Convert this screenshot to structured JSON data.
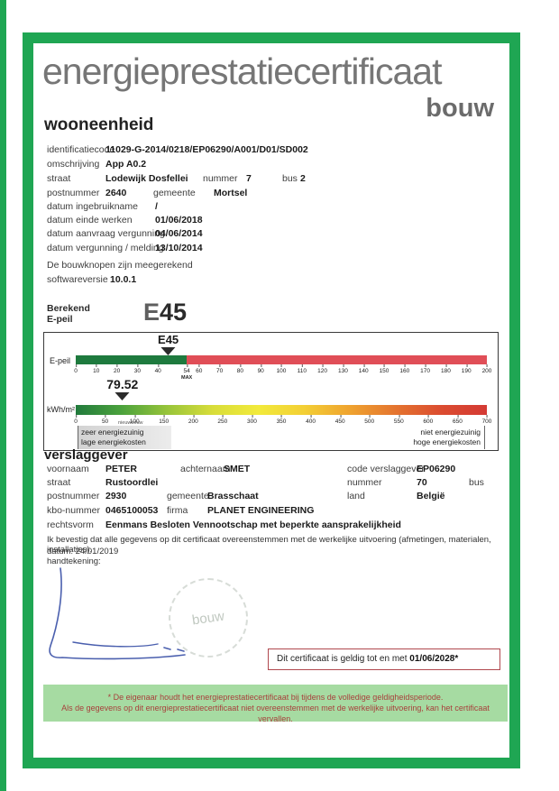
{
  "header": {
    "title": "energieprestatiecertificaat",
    "subtitle": "bouw"
  },
  "unit": {
    "heading": "wooneenheid",
    "identificatiecode_label": "identificatiecode",
    "identificatiecode": "11029-G-2014/0218/EP06290/A001/D01/SD002",
    "omschrijving_label": "omschrijving",
    "omschrijving": "App A0.2",
    "straat_label": "straat",
    "straat": "Lodewijk Dosfellei",
    "nummer_label": "nummer",
    "nummer": "7",
    "bus_label": "bus",
    "bus": "2",
    "postnummer_label": "postnummer",
    "postnummer": "2640",
    "gemeente_label": "gemeente",
    "gemeente": "Mortsel",
    "datum_ingebruikname_label": "datum ingebruikname",
    "datum_ingebruikname": "/",
    "datum_einde_werken_label": "datum einde werken",
    "datum_einde_werken": "01/06/2018",
    "datum_aanvraag_label": "datum aanvraag vergunning",
    "datum_aanvraag": "04/06/2014",
    "datum_vergunning_label": "datum vergunning / melding",
    "datum_vergunning": "13/10/2014",
    "bouwknopen_note": "De bouwknopen zijn meegerekend",
    "softwareversie_label": "softwareversie",
    "softwareversie": "10.0.1"
  },
  "epeil": {
    "berekend_label_1": "Berekend",
    "berekend_label_2": "E-peil",
    "value_prefix": "E",
    "value": "45"
  },
  "chart_data": [
    {
      "type": "scale",
      "title": "E-peil schaal",
      "axis_label": "E-peil",
      "marker_label": "E45",
      "marker_value": 45,
      "min": 0,
      "max": 200,
      "threshold_value": 54,
      "threshold_label": "MAX",
      "ticks": [
        0,
        10,
        20,
        30,
        40,
        54,
        60,
        70,
        80,
        90,
        100,
        110,
        120,
        130,
        140,
        150,
        160,
        170,
        180,
        190,
        200
      ],
      "low_color": "#1e7a3e",
      "high_color": "#e04e57"
    },
    {
      "type": "scale",
      "title": "kWh/m² schaal",
      "axis_label": "kWh/m²",
      "marker_label": "79.52",
      "marker_value": 79.52,
      "min": 0,
      "max": 700,
      "ticks": [
        0,
        50,
        100,
        150,
        200,
        250,
        300,
        350,
        400,
        450,
        500,
        550,
        600,
        650,
        700
      ],
      "gradient": [
        "#217a3c",
        "#4ba23c",
        "#97c43a",
        "#d8dd3a",
        "#f2ea3b",
        "#f3cf35",
        "#efa32f",
        "#e4742f",
        "#db4c30",
        "#d43a34"
      ],
      "note": "nieuwbouw",
      "left_label_line1": "zeer energiezuinig",
      "left_label_line2": "lage energiekosten",
      "right_label_line1": "niet energiezuinig",
      "right_label_line2": "hoge energiekosten"
    }
  ],
  "verslaggever": {
    "heading": "verslaggever",
    "voornaam_label": "voornaam",
    "voornaam": "PETER",
    "achternaam_label": "achternaam",
    "achternaam": "SMET",
    "code_label": "code verslaggever",
    "code": "EP06290",
    "straat_label": "straat",
    "straat": "Rustoordlei",
    "nummer_label": "nummer",
    "nummer": "70",
    "bus_label": "bus",
    "bus": "",
    "postnummer_label": "postnummer",
    "postnummer": "2930",
    "gemeente_label": "gemeente",
    "gemeente": "Brasschaat",
    "land_label": "land",
    "land": "België",
    "kbo_label": "kbo-nummer",
    "kbo": "0465100053",
    "firma_label": "firma",
    "firma": "PLANET ENGINEERING",
    "rechtsvorm_label": "rechtsvorm",
    "rechtsvorm": "Eenmans Besloten Vennootschap met beperkte aansprakelijkheid"
  },
  "statement": {
    "confirm": "Ik bevestig dat alle gegevens op dit certificaat overeenstemmen met de werkelijke uitvoering (afmetingen, materialen, installaties).",
    "datum": "datum: 24/01/2019",
    "handtekening_label": "handtekening:"
  },
  "stamp": {
    "text": "bouw"
  },
  "validity": {
    "text": "Dit certificaat is geldig tot en met ",
    "date": "01/06/2028*"
  },
  "footer": {
    "line1": "*  De eigenaar houdt het energieprestatiecertificaat bij tijdens de volledige geldigheidsperiode.",
    "line2": "Als de gegevens op dit energieprestatiecertificaat niet overeenstemmen met de werkelijke uitvoering, kan het certificaat vervallen."
  },
  "colors": {
    "frame_green": "#1fa653",
    "footer_bg": "#a6dba2",
    "footer_text": "#a8403c",
    "validity_border": "#b0484e",
    "signature_blue": "#4a5fae"
  }
}
